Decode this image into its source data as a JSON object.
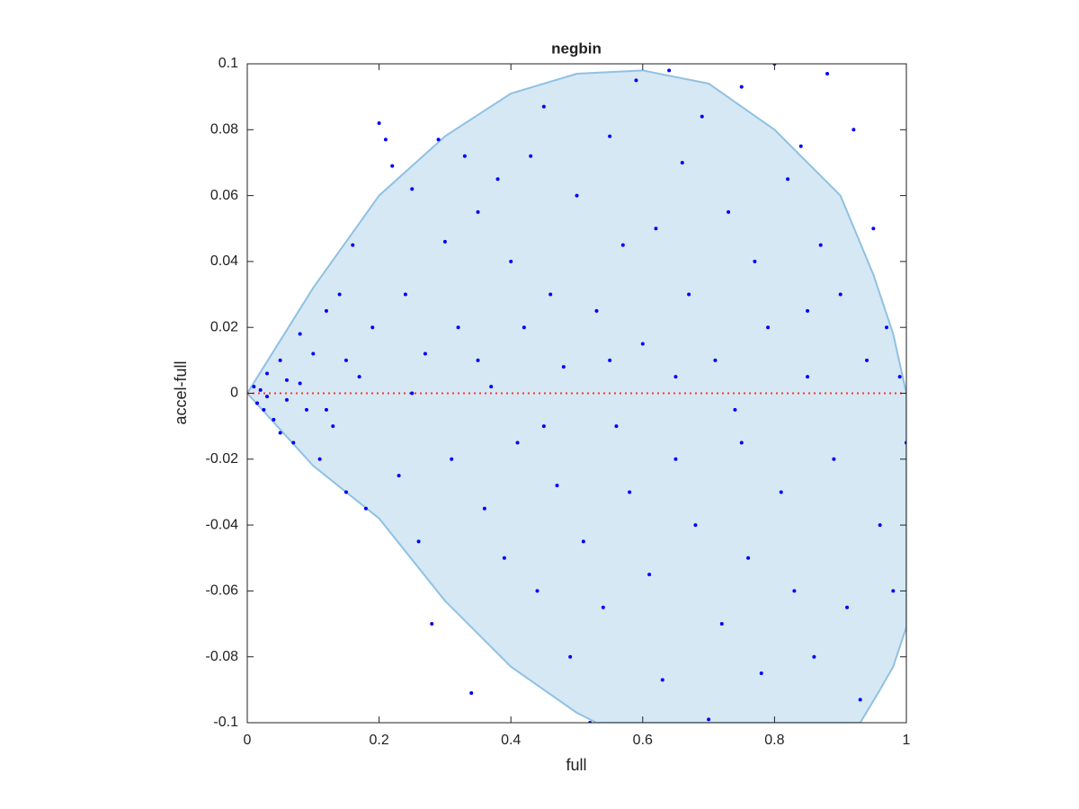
{
  "chart_data": {
    "type": "scatter",
    "title": "negbin",
    "xlabel": "full",
    "ylabel": "accel-full",
    "xlim": [
      0,
      1
    ],
    "ylim": [
      -0.1,
      0.1
    ],
    "xticks": [
      0,
      0.2,
      0.4,
      0.6,
      0.8,
      1
    ],
    "yticks": [
      -0.1,
      -0.08,
      -0.06,
      -0.04,
      -0.02,
      0,
      0.02,
      0.04,
      0.06,
      0.08,
      0.1
    ],
    "hline": {
      "value": 0,
      "color": "#ff3333"
    },
    "region": {
      "color": "#d6e8f4",
      "edge_color": "#8fc1e3",
      "x": [
        0,
        0.1,
        0.2,
        0.3,
        0.4,
        0.5,
        0.6,
        0.7,
        0.8,
        0.85,
        0.9,
        0.95,
        0.98,
        1,
        1,
        0.98,
        0.96,
        0.93,
        0.53,
        0.5,
        0.4,
        0.3,
        0.2,
        0.1,
        0
      ],
      "values": [
        0,
        0.032,
        0.06,
        0.078,
        0.091,
        0.097,
        0.098,
        0.094,
        0.08,
        0.07,
        0.06,
        0.036,
        0.018,
        0,
        -0.071,
        -0.083,
        -0.09,
        -0.1,
        -0.1,
        -0.097,
        -0.083,
        -0.063,
        -0.038,
        -0.022,
        0
      ]
    },
    "series": [
      {
        "color": "#0000ff",
        "x": [
          0.01,
          0.015,
          0.02,
          0.025,
          0.03,
          0.04,
          0.05,
          0.05,
          0.06,
          0.07,
          0.08,
          0.09,
          0.1,
          0.11,
          0.12,
          0.13,
          0.14,
          0.15,
          0.16,
          0.17,
          0.18,
          0.19,
          0.2,
          0.21,
          0.22,
          0.23,
          0.24,
          0.25,
          0.26,
          0.27,
          0.28,
          0.29,
          0.3,
          0.31,
          0.32,
          0.33,
          0.34,
          0.35,
          0.36,
          0.37,
          0.38,
          0.39,
          0.4,
          0.41,
          0.42,
          0.43,
          0.44,
          0.45,
          0.46,
          0.47,
          0.48,
          0.49,
          0.5,
          0.51,
          0.52,
          0.53,
          0.54,
          0.55,
          0.56,
          0.57,
          0.58,
          0.59,
          0.6,
          0.61,
          0.62,
          0.63,
          0.64,
          0.65,
          0.66,
          0.67,
          0.68,
          0.69,
          0.7,
          0.71,
          0.72,
          0.73,
          0.74,
          0.75,
          0.76,
          0.77,
          0.78,
          0.79,
          0.8,
          0.81,
          0.82,
          0.83,
          0.84,
          0.85,
          0.86,
          0.87,
          0.88,
          0.89,
          0.9,
          0.91,
          0.92,
          0.93,
          0.94,
          0.95,
          0.96,
          0.97,
          0.98,
          0.99,
          1,
          0.12,
          0.08,
          0.06,
          0.35,
          0.45,
          0.55,
          0.65,
          0.75,
          0.85,
          0.25,
          0.15,
          0.03
        ],
        "values": [
          0.002,
          -0.003,
          0.001,
          -0.005,
          0.006,
          -0.008,
          0.01,
          -0.012,
          0.004,
          -0.015,
          0.018,
          -0.005,
          0.012,
          -0.02,
          0.025,
          -0.01,
          0.03,
          -0.03,
          0.045,
          0.005,
          -0.035,
          0.02,
          0.082,
          0.077,
          0.069,
          -0.025,
          0.03,
          0.062,
          -0.045,
          0.012,
          -0.07,
          0.077,
          0.046,
          -0.02,
          0.02,
          0.072,
          -0.091,
          0.055,
          -0.035,
          0.002,
          0.065,
          -0.05,
          0.04,
          -0.015,
          0.02,
          0.072,
          -0.06,
          0.087,
          0.03,
          -0.028,
          0.008,
          -0.08,
          0.06,
          -0.045,
          -0.1,
          0.025,
          -0.065,
          0.078,
          -0.01,
          0.045,
          -0.03,
          0.095,
          0.015,
          -0.055,
          0.05,
          -0.087,
          0.098,
          -0.02,
          0.07,
          0.03,
          -0.04,
          0.084,
          -0.099,
          0.01,
          -0.07,
          0.055,
          -0.005,
          0.093,
          -0.05,
          0.04,
          -0.085,
          0.02,
          0.1,
          -0.03,
          0.065,
          -0.06,
          0.075,
          0.005,
          -0.08,
          0.045,
          0.097,
          -0.02,
          0.03,
          -0.065,
          0.08,
          -0.093,
          0.01,
          0.05,
          -0.04,
          0.02,
          -0.06,
          0.005,
          -0.015,
          -0.005,
          0.003,
          -0.002,
          0.01,
          -0.01,
          0.01,
          0.005,
          -0.015,
          0.025,
          0,
          0.01,
          -0.001
        ]
      }
    ]
  }
}
